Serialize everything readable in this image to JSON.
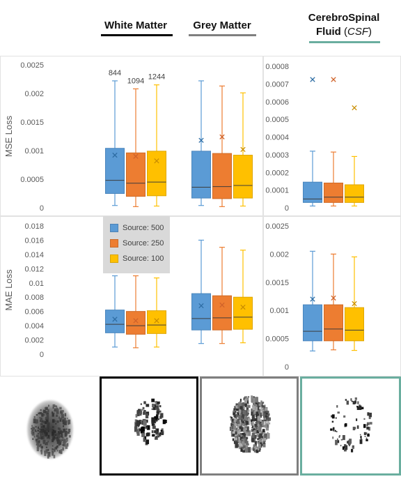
{
  "headers": {
    "white_matter": "White Matter",
    "grey_matter": "Grey Matter",
    "csf_line1": "CerebroSpinal",
    "csf_line2_bold": "Fluid",
    "csf_line2_paren_open": "(",
    "csf_line2_italic": "CSF",
    "csf_line2_paren_close": ")"
  },
  "colors": {
    "white_matter_line": "#000000",
    "grey_matter_line": "#7f7f7f",
    "csf_line": "#6aae9f",
    "series": [
      "#5b9bd5",
      "#ed7d31",
      "#ffc000"
    ],
    "series_edge": [
      "#4a86bd",
      "#cf6a25",
      "#dea600"
    ]
  },
  "legend": [
    {
      "label": "Source: 500"
    },
    {
      "label": "Source: 250"
    },
    {
      "label": "Source: 100"
    }
  ],
  "chart_data": [
    {
      "type": "boxplot",
      "ylabel": "MSE Loss",
      "ylim": [
        0,
        0.0025
      ],
      "yticks": [
        "0",
        "0.0005",
        "0.001",
        "0.0015",
        "0.002",
        "0.0025"
      ],
      "ytick_values": [
        0,
        0.0005,
        0.001,
        0.0015,
        0.002,
        0.0025
      ],
      "groups": [
        {
          "name": "White Matter",
          "boxes": [
            {
              "min": 4e-05,
              "q1": 0.00025,
              "median": 0.00048,
              "q3": 0.00104,
              "max": 0.00222,
              "mean": 0.00092,
              "label": "844"
            },
            {
              "min": 2e-05,
              "q1": 0.0002,
              "median": 0.00043,
              "q3": 0.00096,
              "max": 0.00208,
              "mean": 0.0009,
              "label": "1094"
            },
            {
              "min": 3e-05,
              "q1": 0.00021,
              "median": 0.00045,
              "q3": 0.00099,
              "max": 0.00215,
              "mean": 0.00082,
              "label": "1244"
            }
          ]
        },
        {
          "name": "Grey Matter",
          "boxes": [
            {
              "min": 4e-05,
              "q1": 0.00017,
              "median": 0.00036,
              "q3": 0.00099,
              "max": 0.00222,
              "mean": 0.00118
            },
            {
              "min": 2e-05,
              "q1": 0.00016,
              "median": 0.00037,
              "q3": 0.00095,
              "max": 0.00213,
              "mean": 0.00124
            },
            {
              "min": 3e-05,
              "q1": 0.00017,
              "median": 0.00039,
              "q3": 0.00092,
              "max": 0.00201,
              "mean": 0.00102
            }
          ]
        }
      ]
    },
    {
      "type": "boxplot",
      "ylabel": "",
      "ylim": [
        0,
        0.0008
      ],
      "yticks": [
        "0",
        "0.0001",
        "0.0002",
        "0.0003",
        "0.0004",
        "0.0005",
        "0.0006",
        "0.0007",
        "0.0008"
      ],
      "ytick_values": [
        0,
        0.0001,
        0.0002,
        0.0003,
        0.0004,
        0.0005,
        0.0006,
        0.0007,
        0.0008
      ],
      "groups": [
        {
          "name": "CerebroSpinal Fluid",
          "boxes": [
            {
              "min": 1e-05,
              "q1": 3e-05,
              "median": 5e-05,
              "q3": 0.000145,
              "max": 0.00032,
              "mean": 0.000725
            },
            {
              "min": 1e-05,
              "q1": 3e-05,
              "median": 6e-05,
              "q3": 0.00014,
              "max": 0.000315,
              "mean": 0.000725
            },
            {
              "min": 1e-05,
              "q1": 3e-05,
              "median": 6e-05,
              "q3": 0.00013,
              "max": 0.00029,
              "mean": 0.000565
            }
          ]
        }
      ]
    },
    {
      "type": "boxplot",
      "ylabel": "MAE Loss",
      "ylim": [
        0,
        0.018
      ],
      "yticks": [
        "0",
        "0.002",
        "0.004",
        "0.006",
        "0.008",
        "0.01",
        "0.012",
        "0.014",
        "0.016",
        "0.018"
      ],
      "ytick_values": [
        0,
        0.002,
        0.004,
        0.006,
        0.008,
        0.01,
        0.012,
        0.014,
        0.016,
        0.018
      ],
      "groups": [
        {
          "name": "White Matter",
          "boxes": [
            {
              "min": 0.001,
              "q1": 0.003,
              "median": 0.0042,
              "q3": 0.0062,
              "max": 0.011,
              "mean": 0.0049
            },
            {
              "min": 0.0009,
              "q1": 0.0028,
              "median": 0.004,
              "q3": 0.006,
              "max": 0.011,
              "mean": 0.0047
            },
            {
              "min": 0.001,
              "q1": 0.0029,
              "median": 0.0041,
              "q3": 0.0061,
              "max": 0.0107,
              "mean": 0.0047
            }
          ]
        },
        {
          "name": "Grey Matter",
          "boxes": [
            {
              "min": 0.0015,
              "q1": 0.0034,
              "median": 0.005,
              "q3": 0.0085,
              "max": 0.016,
              "mean": 0.0068
            },
            {
              "min": 0.0015,
              "q1": 0.0034,
              "median": 0.0051,
              "q3": 0.0082,
              "max": 0.015,
              "mean": 0.0069
            },
            {
              "min": 0.0016,
              "q1": 0.0035,
              "median": 0.0052,
              "q3": 0.008,
              "max": 0.0146,
              "mean": 0.0066
            }
          ]
        }
      ]
    },
    {
      "type": "boxplot",
      "ylabel": "",
      "ylim": [
        0,
        0.0025
      ],
      "yticks": [
        "0",
        "0.0005",
        "0.001",
        "0.0015",
        "0.002",
        "0.0025"
      ],
      "ytick_values": [
        0,
        0.0005,
        0.001,
        0.0015,
        0.002,
        0.0025
      ],
      "groups": [
        {
          "name": "CerebroSpinal Fluid",
          "boxes": [
            {
              "min": 0.00028,
              "q1": 0.00046,
              "median": 0.00063,
              "q3": 0.0011,
              "max": 0.00205,
              "mean": 0.0012
            },
            {
              "min": 0.0003,
              "q1": 0.00046,
              "median": 0.00067,
              "q3": 0.0011,
              "max": 0.002,
              "mean": 0.00122
            },
            {
              "min": 0.00029,
              "q1": 0.00046,
              "median": 0.00065,
              "q3": 0.00105,
              "max": 0.00195,
              "mean": 0.00112
            }
          ]
        }
      ]
    }
  ],
  "thumbnails": [
    {
      "name": "brain-full",
      "border": "none"
    },
    {
      "name": "white-matter",
      "border": "#000000"
    },
    {
      "name": "grey-matter",
      "border": "#7f7f7f"
    },
    {
      "name": "csf",
      "border": "#6aae9f"
    }
  ]
}
